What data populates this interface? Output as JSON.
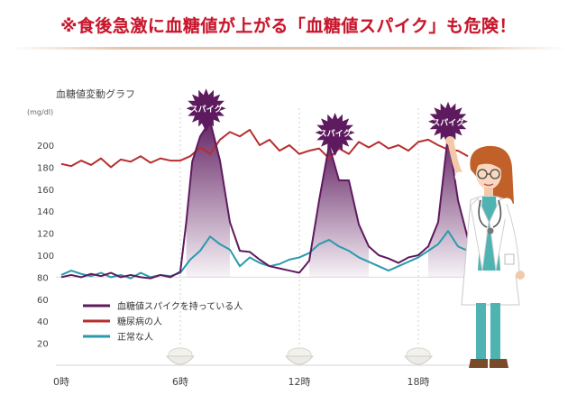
{
  "headline": "※食後急激に血糖値が上がる「血糖値スパイク」も危険！",
  "colors": {
    "headline": "#c8162c",
    "spike": "#5e1a5e",
    "diabetes": "#b72e2e",
    "normal": "#2a9aae",
    "grid": "#e3e3e3",
    "rice_bowl": "#ecebe6"
  },
  "icons": [
    "spike-starburst-icon",
    "rice-bowl-icon",
    "doctor-illustration"
  ],
  "chart_data": {
    "type": "line",
    "title": "血糖値変動グラフ",
    "ylabel": "(mg/dl)",
    "xlabel": "",
    "ylim": [
      0,
      230
    ],
    "yticks": [
      20,
      40,
      60,
      80,
      100,
      120,
      140,
      160,
      180,
      200
    ],
    "xlim": [
      0,
      24
    ],
    "xtick_labels": [
      {
        "x": 0,
        "label": "0時"
      },
      {
        "x": 6,
        "label": "6時"
      },
      {
        "x": 12,
        "label": "12時"
      },
      {
        "x": 18,
        "label": "18時"
      }
    ],
    "meal_markers_x": [
      6,
      12,
      18
    ],
    "grid": "vertical dotted at meals",
    "legend": "lower-left",
    "series": [
      {
        "name": "血糖値スパイクを持っている人",
        "color": "#5e1a5e",
        "x": [
          0,
          0.5,
          1,
          1.5,
          2,
          2.5,
          3,
          3.5,
          4,
          4.5,
          5,
          5.5,
          6,
          6.3,
          6.6,
          7,
          7.5,
          8,
          8.5,
          9,
          9.5,
          10,
          10.5,
          11,
          11.5,
          12,
          12.5,
          13,
          13.5,
          14,
          14.5,
          15,
          15.5,
          16,
          16.5,
          17,
          17.5,
          18,
          18.5,
          19,
          19.5,
          20,
          20.5
        ],
        "y": [
          80,
          82,
          80,
          83,
          81,
          84,
          80,
          82,
          80,
          79,
          82,
          80,
          85,
          130,
          185,
          208,
          222,
          186,
          130,
          104,
          103,
          96,
          90,
          88,
          86,
          84,
          95,
          150,
          200,
          168,
          168,
          128,
          108,
          100,
          97,
          93,
          98,
          100,
          108,
          130,
          210,
          150,
          115
        ]
      },
      {
        "name": "糖尿病の人",
        "color": "#b72e2e",
        "x": [
          0,
          0.5,
          1,
          1.5,
          2,
          2.5,
          3,
          3.5,
          4,
          4.5,
          5,
          5.5,
          6,
          6.5,
          7,
          7.5,
          8,
          8.5,
          9,
          9.5,
          10,
          10.5,
          11,
          11.5,
          12,
          12.5,
          13,
          13.5,
          14,
          14.5,
          15,
          15.5,
          16,
          16.5,
          17,
          17.5,
          18,
          18.5,
          19,
          19.5,
          20,
          20.5
        ],
        "y": [
          183,
          181,
          186,
          182,
          188,
          180,
          187,
          185,
          190,
          184,
          188,
          186,
          186,
          190,
          198,
          192,
          205,
          212,
          208,
          214,
          200,
          205,
          195,
          200,
          192,
          195,
          197,
          188,
          197,
          192,
          203,
          198,
          203,
          197,
          200,
          195,
          203,
          205,
          200,
          196,
          195,
          190
        ]
      },
      {
        "name": "正常な人",
        "color": "#2a9aae",
        "x": [
          0,
          0.5,
          1,
          1.5,
          2,
          2.5,
          3,
          3.5,
          4,
          4.5,
          5,
          5.5,
          6,
          6.5,
          7,
          7.5,
          8,
          8.5,
          9,
          9.5,
          10,
          10.5,
          11,
          11.5,
          12,
          12.5,
          13,
          13.5,
          14,
          14.5,
          15,
          15.5,
          16,
          16.5,
          17,
          17.5,
          18,
          18.5,
          19,
          19.5,
          20,
          20.5
        ],
        "y": [
          82,
          86,
          83,
          81,
          84,
          80,
          82,
          79,
          84,
          80,
          82,
          81,
          84,
          96,
          104,
          117,
          110,
          105,
          90,
          98,
          93,
          90,
          92,
          96,
          98,
          102,
          110,
          114,
          108,
          104,
          98,
          94,
          90,
          86,
          90,
          94,
          98,
          104,
          110,
          122,
          108,
          104
        ]
      }
    ],
    "annotations": [
      {
        "text": "スパイク",
        "x": 7.3,
        "y": 222
      },
      {
        "text": "スパイク",
        "x": 13.8,
        "y": 200
      },
      {
        "text": "スパイク",
        "x": 19.5,
        "y": 210
      }
    ]
  }
}
